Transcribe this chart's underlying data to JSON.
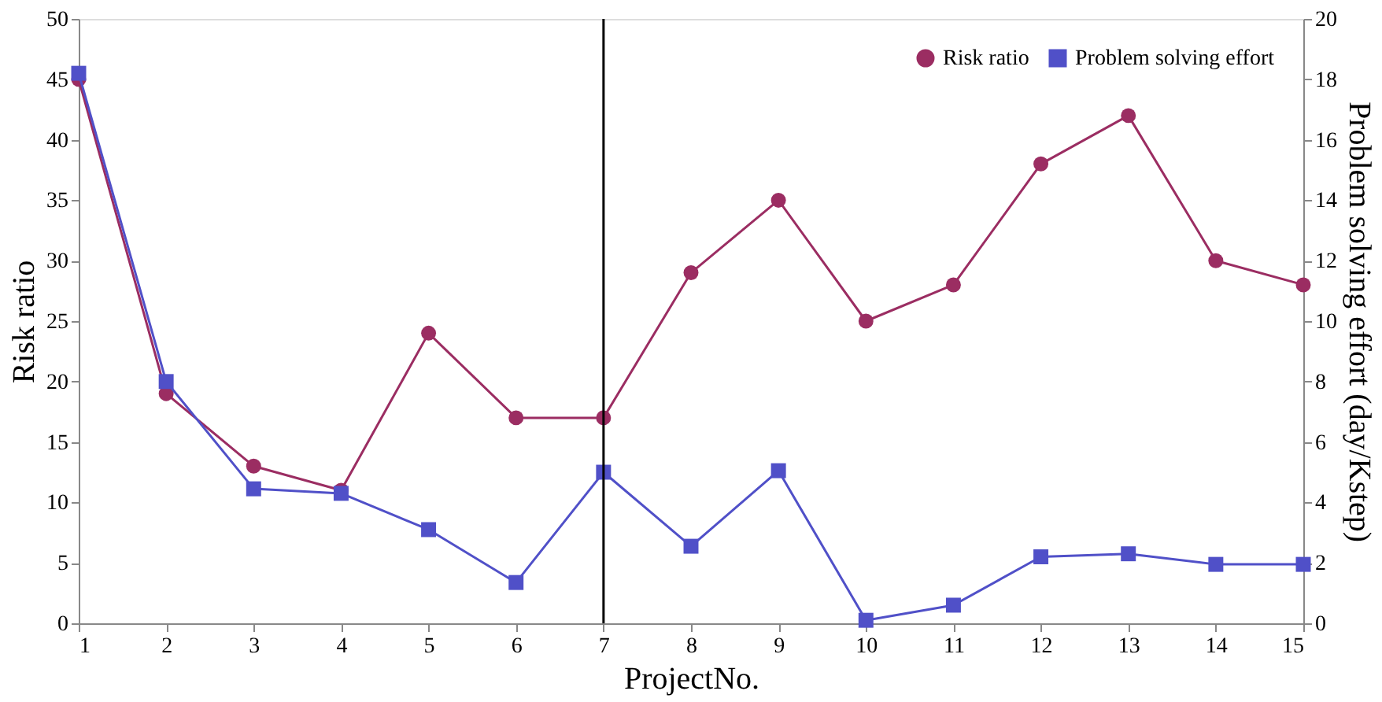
{
  "chart_data": {
    "type": "line",
    "xlabel": "ProjectNo.",
    "ylabel": "Risk ratio",
    "y2label": "Problem solving effort (day/Kstep)",
    "x": [
      1,
      2,
      3,
      4,
      5,
      6,
      7,
      8,
      9,
      10,
      11,
      12,
      13,
      14,
      15
    ],
    "xlim": [
      1,
      15
    ],
    "xticks": [
      1,
      2,
      3,
      4,
      5,
      6,
      7,
      8,
      9,
      10,
      11,
      12,
      13,
      14,
      15
    ],
    "ylim": [
      0,
      50
    ],
    "yticks": [
      0,
      5,
      10,
      15,
      20,
      25,
      30,
      35,
      40,
      45,
      50
    ],
    "y2lim": [
      0,
      20
    ],
    "y2ticks": [
      0,
      2,
      4,
      6,
      8,
      10,
      12,
      14,
      16,
      18,
      20
    ],
    "series": [
      {
        "name": "Risk ratio",
        "color": "#9b2d62",
        "marker": "circle",
        "values": [
          45,
          19,
          13,
          11,
          24,
          17,
          17,
          29,
          35,
          25,
          28,
          38,
          42,
          30,
          28
        ]
      },
      {
        "name": "Problem solving effort",
        "color": "#5050c8",
        "marker": "square",
        "axis": "y2",
        "values": [
          18.2,
          8.0,
          4.45,
          4.3,
          3.1,
          1.35,
          5.0,
          2.55,
          5.05,
          0.1,
          0.6,
          2.2,
          2.3,
          1.95,
          1.95
        ]
      }
    ],
    "ref_lines": [
      {
        "axis": "x",
        "value": 7,
        "color": "#000000"
      }
    ],
    "legend": "top right",
    "grid": false
  }
}
